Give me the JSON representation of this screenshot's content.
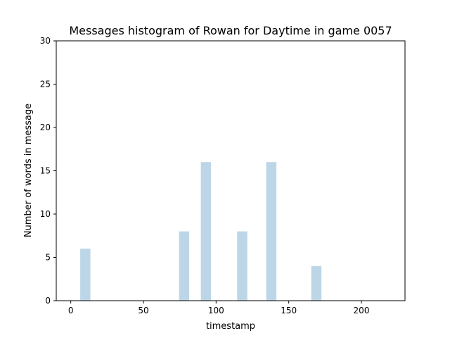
{
  "chart_data": {
    "type": "bar",
    "title": "Messages histogram of Rowan for Daytime in game 0057",
    "xlabel": "timestamp",
    "ylabel": "Number of words in message",
    "xlim": [
      -10,
      230
    ],
    "ylim": [
      0,
      30
    ],
    "x_ticks": [
      0,
      50,
      100,
      150,
      200
    ],
    "y_ticks": [
      0,
      5,
      10,
      15,
      20,
      25,
      30
    ],
    "bar_width": 7,
    "bar_color": "#bcd6e8",
    "grid": false,
    "legend": "none",
    "bars": [
      {
        "x": 10,
        "value": 6
      },
      {
        "x": 78,
        "value": 8
      },
      {
        "x": 93,
        "value": 16
      },
      {
        "x": 118,
        "value": 8
      },
      {
        "x": 138,
        "value": 16
      },
      {
        "x": 169,
        "value": 4
      }
    ]
  }
}
